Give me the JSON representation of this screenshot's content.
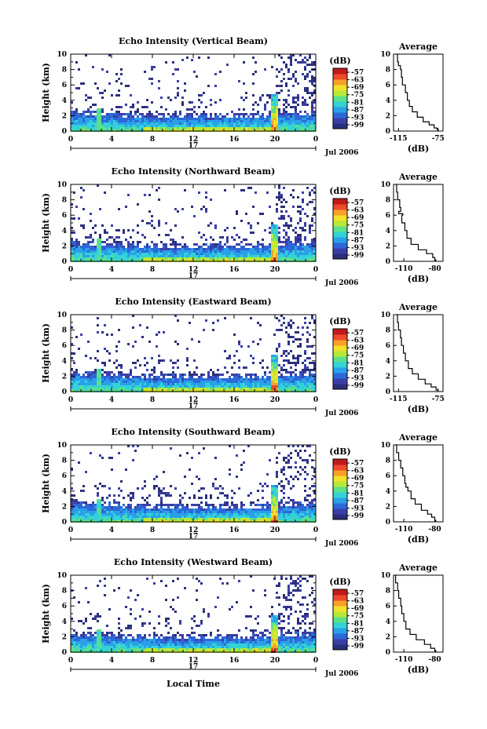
{
  "figure": {
    "xlabel": "Local Time",
    "date_label": "Jul 2006",
    "day_label": "17",
    "colorbar_unit": "(dB)",
    "colorbar_ticks": [
      -57,
      -63,
      -69,
      -75,
      -81,
      -87,
      -93,
      -99
    ],
    "colors": [
      "#2b2f7a",
      "#3a3fa6",
      "#2d68d8",
      "#2aa0e8",
      "#33d2d8",
      "#5be08a",
      "#b8e83a",
      "#f2e12a",
      "#f8a02a",
      "#ee4a2a",
      "#c01a1a"
    ]
  },
  "chart_data": [
    {
      "type": "heatmap",
      "title": "Echo Intensity (Vertical Beam)",
      "ylabel": "Height (km)",
      "x_ticks": [
        "0",
        "4",
        "8",
        "12",
        "16",
        "20",
        "0"
      ],
      "xlim": [
        0,
        24
      ],
      "ylim": [
        0,
        10
      ],
      "y_ticks": [
        0,
        2,
        4,
        6,
        8,
        10
      ],
      "profile": {
        "title": "Average",
        "xlabel": "(dB)",
        "x_ticks": [
          "-115",
          "-75"
        ],
        "xlim": [
          -120,
          -70
        ],
        "points": [
          [
            -117,
            10
          ],
          [
            -116,
            9
          ],
          [
            -115,
            8.5
          ],
          [
            -113,
            8
          ],
          [
            -112,
            7
          ],
          [
            -111,
            6
          ],
          [
            -108,
            5
          ],
          [
            -106,
            4
          ],
          [
            -104,
            3.2
          ],
          [
            -101,
            2.5
          ],
          [
            -96,
            1.8
          ],
          [
            -90,
            1.2
          ],
          [
            -84,
            0.8
          ],
          [
            -79,
            0.4
          ],
          [
            -76,
            0.2
          ],
          [
            -75,
            0
          ]
        ]
      }
    },
    {
      "type": "heatmap",
      "title": "Echo Intensity (Northward Beam)",
      "ylabel": "Height (km)",
      "x_ticks": [
        "0",
        "4",
        "8",
        "12",
        "16",
        "20",
        "0"
      ],
      "xlim": [
        0,
        24
      ],
      "ylim": [
        0,
        10
      ],
      "y_ticks": [
        0,
        2,
        4,
        6,
        8,
        10
      ],
      "profile": {
        "title": "Average",
        "xlabel": "(dB)",
        "x_ticks": [
          "-110",
          "-80"
        ],
        "xlim": [
          -120,
          -72
        ],
        "points": [
          [
            -118,
            10
          ],
          [
            -117,
            9
          ],
          [
            -116,
            8
          ],
          [
            -114,
            7
          ],
          [
            -113,
            6.5
          ],
          [
            -115,
            6.2
          ],
          [
            -111,
            6
          ],
          [
            -112,
            5
          ],
          [
            -109,
            4
          ],
          [
            -107,
            3
          ],
          [
            -103,
            2.2
          ],
          [
            -96,
            1.5
          ],
          [
            -88,
            1
          ],
          [
            -82,
            0.5
          ],
          [
            -80,
            0.2
          ],
          [
            -79,
            0
          ]
        ]
      }
    },
    {
      "type": "heatmap",
      "title": "Echo Intensity (Eastward Beam)",
      "ylabel": "Height (km)",
      "x_ticks": [
        "0",
        "4",
        "8",
        "12",
        "16",
        "20",
        "0"
      ],
      "xlim": [
        0,
        24
      ],
      "ylim": [
        0,
        10
      ],
      "y_ticks": [
        0,
        2,
        4,
        6,
        8,
        10
      ],
      "profile": {
        "title": "Average",
        "xlabel": "(dB)",
        "x_ticks": [
          "-115",
          "-75"
        ],
        "xlim": [
          -120,
          -70
        ],
        "points": [
          [
            -117,
            10
          ],
          [
            -116,
            9
          ],
          [
            -115,
            8
          ],
          [
            -113,
            7
          ],
          [
            -112,
            6
          ],
          [
            -110,
            5
          ],
          [
            -108,
            4
          ],
          [
            -105,
            3
          ],
          [
            -101,
            2.3
          ],
          [
            -95,
            1.6
          ],
          [
            -88,
            1
          ],
          [
            -82,
            0.6
          ],
          [
            -77,
            0.2
          ],
          [
            -75,
            0
          ]
        ]
      }
    },
    {
      "type": "heatmap",
      "title": "Echo Intensity (Southward Beam)",
      "ylabel": "Height (km)",
      "x_ticks": [
        "0",
        "4",
        "8",
        "12",
        "16",
        "20",
        "0"
      ],
      "xlim": [
        0,
        24
      ],
      "ylim": [
        0,
        10
      ],
      "y_ticks": [
        0,
        2,
        4,
        6,
        8,
        10
      ],
      "profile": {
        "title": "Average",
        "xlabel": "(dB)",
        "x_ticks": [
          "-110",
          "-80"
        ],
        "xlim": [
          -120,
          -72
        ],
        "points": [
          [
            -118,
            10
          ],
          [
            -117,
            9
          ],
          [
            -115,
            8
          ],
          [
            -113,
            7
          ],
          [
            -111,
            6
          ],
          [
            -109,
            5
          ],
          [
            -108,
            4.5
          ],
          [
            -106,
            4
          ],
          [
            -103,
            3
          ],
          [
            -99,
            2.3
          ],
          [
            -93,
            1.5
          ],
          [
            -87,
            1
          ],
          [
            -83,
            0.6
          ],
          [
            -80,
            0.2
          ],
          [
            -79,
            0
          ]
        ]
      }
    },
    {
      "type": "heatmap",
      "title": "Echo Intensity (Westward Beam)",
      "ylabel": "Height (km)",
      "x_ticks": [
        "0",
        "4",
        "8",
        "12",
        "16",
        "20",
        "0"
      ],
      "xlim": [
        0,
        24
      ],
      "ylim": [
        0,
        10
      ],
      "y_ticks": [
        0,
        2,
        4,
        6,
        8,
        10
      ],
      "profile": {
        "title": "Average",
        "xlabel": "(dB)",
        "x_ticks": [
          "-110",
          "-80"
        ],
        "xlim": [
          -120,
          -72
        ],
        "points": [
          [
            -119,
            10
          ],
          [
            -118,
            9
          ],
          [
            -116,
            8
          ],
          [
            -115,
            7
          ],
          [
            -113,
            6
          ],
          [
            -112,
            5
          ],
          [
            -110,
            4
          ],
          [
            -108,
            3
          ],
          [
            -104,
            2.3
          ],
          [
            -98,
            1.6
          ],
          [
            -90,
            1
          ],
          [
            -84,
            0.5
          ],
          [
            -80,
            0.2
          ],
          [
            -79,
            0
          ]
        ]
      }
    }
  ]
}
